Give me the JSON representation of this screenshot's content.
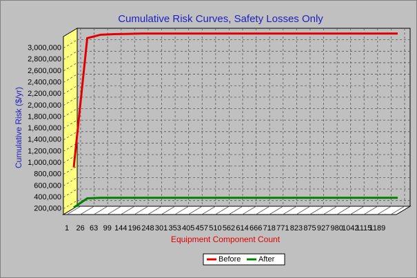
{
  "chart_data": {
    "type": "line",
    "title": "Cumulative Risk Curves, Safety Losses Only",
    "x_label": "Equipment Component Count",
    "y_label": "Cumulative Risk ($/yr)",
    "categories": [
      "1",
      "26",
      "63",
      "99",
      "144",
      "196",
      "248",
      "301",
      "353",
      "405",
      "457",
      "510",
      "562",
      "614",
      "666",
      "718",
      "771",
      "823",
      "875",
      "927",
      "980",
      "1042",
      "1115",
      "1189",
      null
    ],
    "series": [
      {
        "name": "Before",
        "color": "#e00000",
        "values": [
          850000,
          3100000,
          3160000,
          3170000,
          3175000,
          3180000,
          3180000,
          3180000,
          3180000,
          3180000,
          3180000,
          3180000,
          3180000,
          3180000,
          3180000,
          3180000,
          3180000,
          3180000,
          3180000,
          3180000,
          3180000,
          3180000,
          3180000,
          3180000,
          3180000
        ]
      },
      {
        "name": "After",
        "color": "#008000",
        "values": [
          150000,
          310000,
          320000,
          320000,
          320000,
          320000,
          320000,
          320000,
          320000,
          320000,
          320000,
          320000,
          320000,
          320000,
          320000,
          320000,
          320000,
          320000,
          320000,
          320000,
          320000,
          320000,
          320000,
          320000,
          320000
        ]
      }
    ],
    "ylim": [
      100000,
      3200000
    ],
    "yticks": [
      {
        "value": 200000,
        "label": "200,000"
      },
      {
        "value": 400000,
        "label": "400,000"
      },
      {
        "value": 600000,
        "label": "600,000"
      },
      {
        "value": 800000,
        "label": "800,000"
      },
      {
        "value": 1000000,
        "label": "1,000,000"
      },
      {
        "value": 1200000,
        "label": "1,200,000"
      },
      {
        "value": 1400000,
        "label": "1,400,000"
      },
      {
        "value": 1600000,
        "label": "1,600,000"
      },
      {
        "value": 1800000,
        "label": "1,800,000"
      },
      {
        "value": 2000000,
        "label": "2,000,000"
      },
      {
        "value": 2200000,
        "label": "2,200,000"
      },
      {
        "value": 2400000,
        "label": "2,400,000"
      },
      {
        "value": 2600000,
        "label": "2,600,000"
      },
      {
        "value": 2800000,
        "label": "2,800,000"
      },
      {
        "value": 3000000,
        "label": "3,000,000"
      }
    ],
    "grid": true,
    "legend": "bottom"
  }
}
